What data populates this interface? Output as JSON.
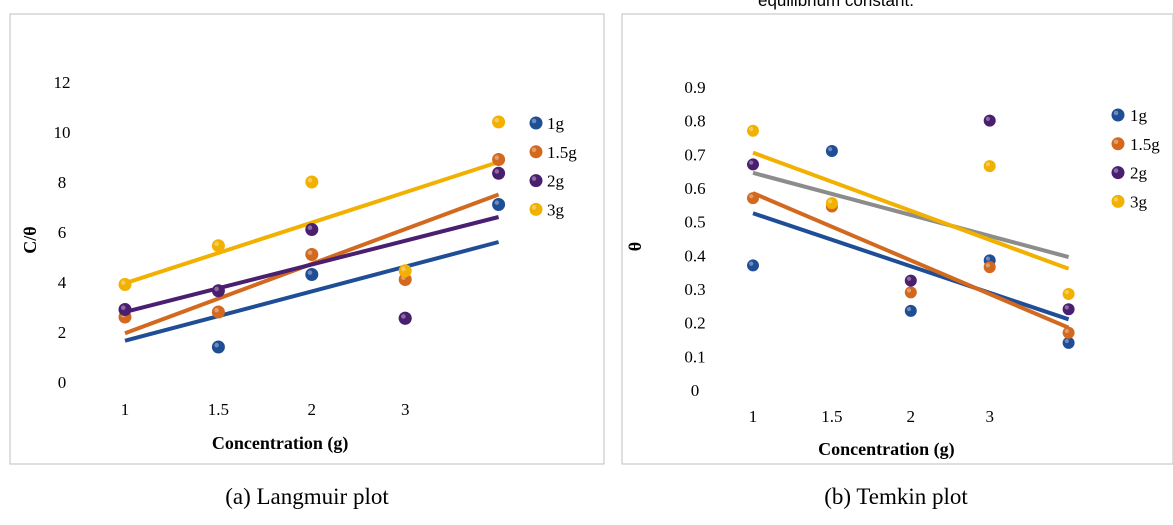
{
  "overflow_text": "equilibrium constant.",
  "chart_data": [
    {
      "type": "scatter",
      "title": "",
      "caption": "(a) Langmuir plot",
      "xlabel": "Concentration (g)",
      "ylabel": "C/θ",
      "categories": [
        "1",
        "1.5",
        "2",
        "3",
        ""
      ],
      "yticks": [
        "0",
        "2",
        "4",
        "6",
        "8",
        "10",
        "12"
      ],
      "ylim": [
        0,
        13
      ],
      "grid": false,
      "legend_position": "right",
      "series": [
        {
          "name": "1g",
          "color": "#1f4e96",
          "values": [
            null,
            1.4,
            4.3,
            2.55,
            7.1
          ],
          "trend": [
            1.65,
            5.6
          ]
        },
        {
          "name": "1.5g",
          "color": "#d2691e",
          "values": [
            2.6,
            2.8,
            5.1,
            4.1,
            8.9
          ],
          "trend": [
            1.95,
            7.5
          ]
        },
        {
          "name": "2g",
          "color": "#4b1f6f",
          "values": [
            2.9,
            3.65,
            6.1,
            2.55,
            8.35
          ],
          "trend": [
            2.8,
            6.6
          ]
        },
        {
          "name": "3g",
          "color": "#f2b100",
          "values": [
            3.9,
            5.45,
            8.0,
            4.45,
            10.4
          ],
          "trend": [
            3.95,
            8.8
          ]
        }
      ]
    },
    {
      "type": "scatter",
      "title": "",
      "caption": "(b) Temkin plot",
      "xlabel": "Concentration (g)",
      "ylabel": "θ",
      "categories": [
        "1",
        "1.5",
        "2",
        "3",
        ""
      ],
      "yticks": [
        "0",
        "0.1",
        "0.2",
        "0.3",
        "0.4",
        "0.5",
        "0.6",
        "0.7",
        "0.8",
        "0.9"
      ],
      "ylim": [
        0,
        0.9
      ],
      "grid": false,
      "legend_position": "right",
      "series": [
        {
          "name": "1g",
          "color": "#1f4e96",
          "values": [
            0.37,
            0.71,
            0.235,
            0.385,
            0.14
          ],
          "trend": [
            0.525,
            0.21
          ],
          "trend_color": "#1f4e96"
        },
        {
          "name": "1.5g",
          "color": "#d2691e",
          "values": [
            0.57,
            0.545,
            0.29,
            0.365,
            0.17
          ],
          "trend": [
            0.585,
            0.185
          ],
          "trend_color": "#d2691e"
        },
        {
          "name": "2g",
          "color": "#4b1f6f",
          "values": [
            0.67,
            null,
            0.325,
            0.8,
            0.24
          ],
          "trend": [
            0.645,
            0.395
          ],
          "trend_color": "#8c8c8c"
        },
        {
          "name": "3g",
          "color": "#f2b100",
          "values": [
            0.77,
            0.555,
            null,
            0.665,
            0.285
          ],
          "trend": [
            0.705,
            0.36
          ],
          "trend_color": "#f2b100"
        }
      ]
    }
  ]
}
